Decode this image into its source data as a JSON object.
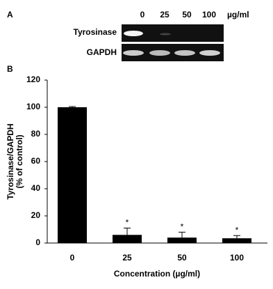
{
  "panel_a": {
    "label": "A",
    "concentrations": [
      "0",
      "25",
      "50",
      "100"
    ],
    "unit": "µg/ml",
    "rows": [
      "Tyrosinase",
      "GAPDH"
    ]
  },
  "chart_data": {
    "type": "bar",
    "panel_label": "B",
    "categories": [
      "0",
      "25",
      "50",
      "100"
    ],
    "values": [
      100,
      6,
      4,
      3.5
    ],
    "errors": [
      0.5,
      5,
      4,
      2
    ],
    "annotations": [
      null,
      "*",
      "*",
      "*"
    ],
    "color": "#000000",
    "ylabel": [
      "Tyrosinase/GAPDH",
      "(% of control)"
    ],
    "xlabel": "Concentration (µg/ml)",
    "ylim": [
      0,
      120
    ],
    "yticks": [
      0,
      20,
      40,
      60,
      80,
      100,
      120
    ]
  }
}
